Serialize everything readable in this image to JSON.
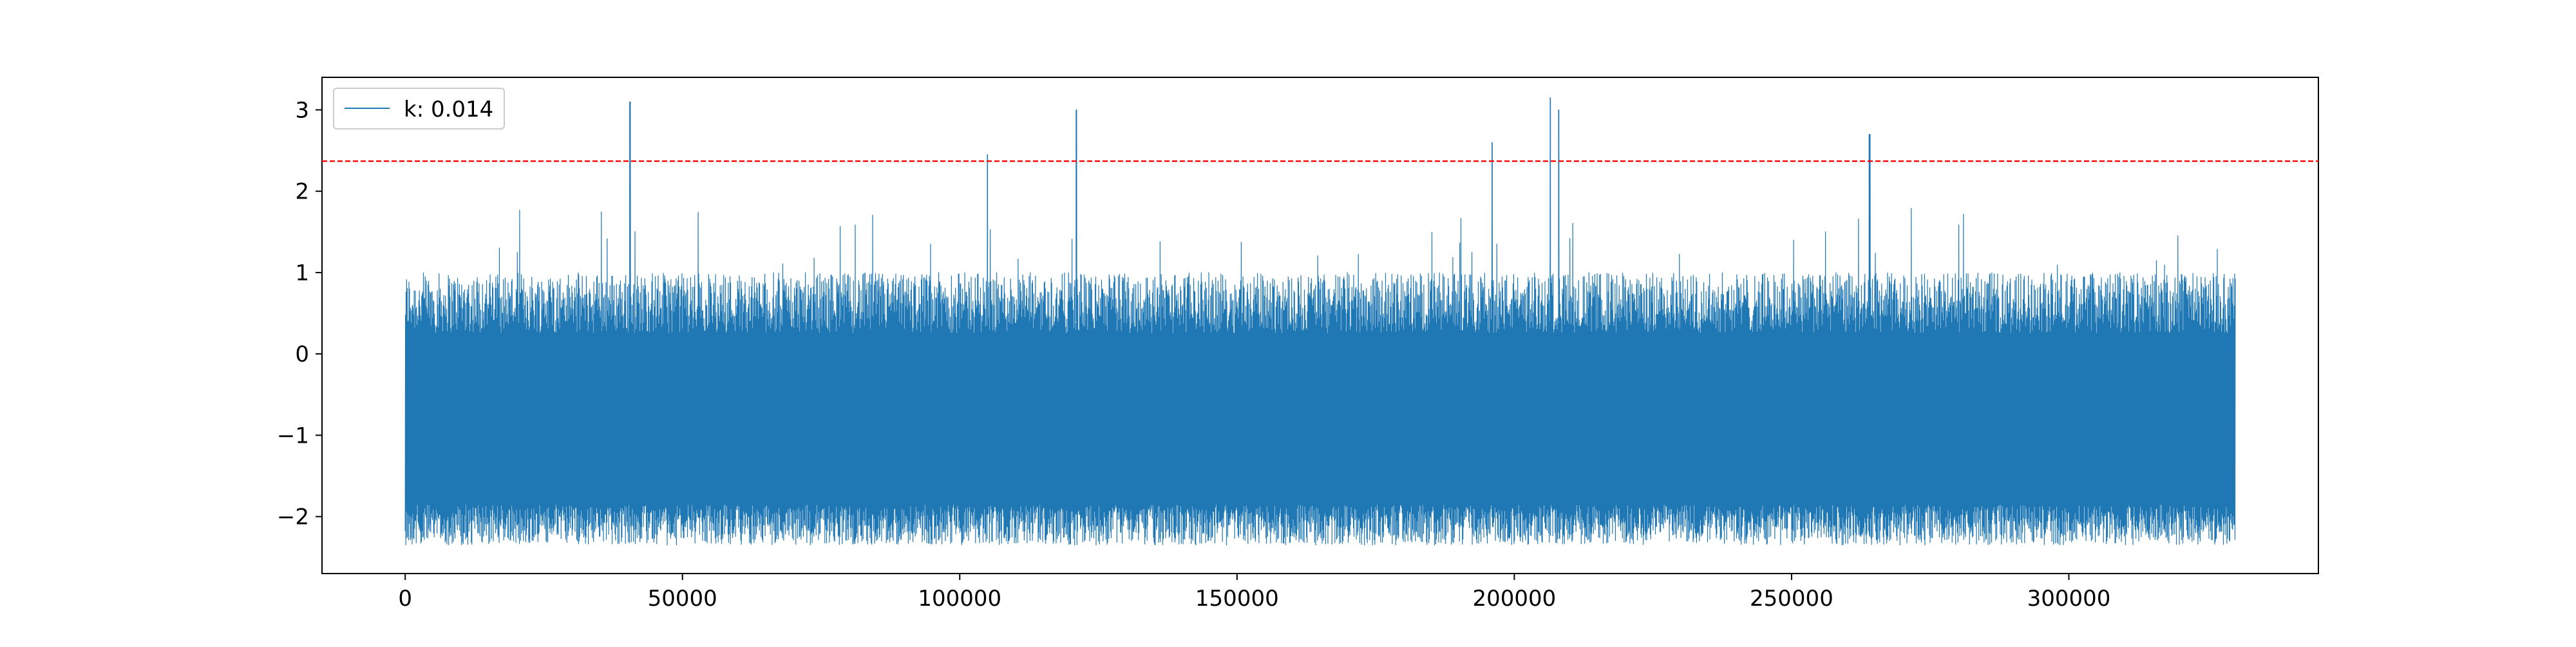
{
  "chart_data": {
    "type": "line",
    "title": "",
    "xlabel": "",
    "ylabel": "",
    "xlim": [
      -15000,
      345000
    ],
    "ylim": [
      -2.7,
      3.4
    ],
    "x_ticks": [
      0,
      50000,
      100000,
      150000,
      200000,
      250000,
      300000
    ],
    "x_tick_labels": [
      "0",
      "50000",
      "100000",
      "150000",
      "200000",
      "250000",
      "300000"
    ],
    "y_ticks": [
      -2,
      -1,
      0,
      1,
      2,
      3
    ],
    "y_tick_labels": [
      "−2",
      "−1",
      "0",
      "1",
      "2",
      "3"
    ],
    "grid": false,
    "legend": {
      "position": "upper-left",
      "entries": [
        "k: 0.014"
      ]
    },
    "series": [
      {
        "name": "k: 0.014",
        "color": "#1f77b4",
        "x_range": [
          0,
          330000
        ],
        "typical_range": [
          -2.2,
          0.8
        ],
        "min": -2.4,
        "peaks": [
          {
            "x": 40500,
            "y": 3.1
          },
          {
            "x": 105000,
            "y": 2.45
          },
          {
            "x": 121000,
            "y": 3.0
          },
          {
            "x": 196000,
            "y": 2.6
          },
          {
            "x": 206500,
            "y": 3.15
          },
          {
            "x": 208000,
            "y": 3.0
          },
          {
            "x": 264000,
            "y": 2.7
          }
        ]
      }
    ],
    "reference_line": {
      "y": 2.37,
      "color": "#ff0000",
      "style": "dashed"
    }
  }
}
